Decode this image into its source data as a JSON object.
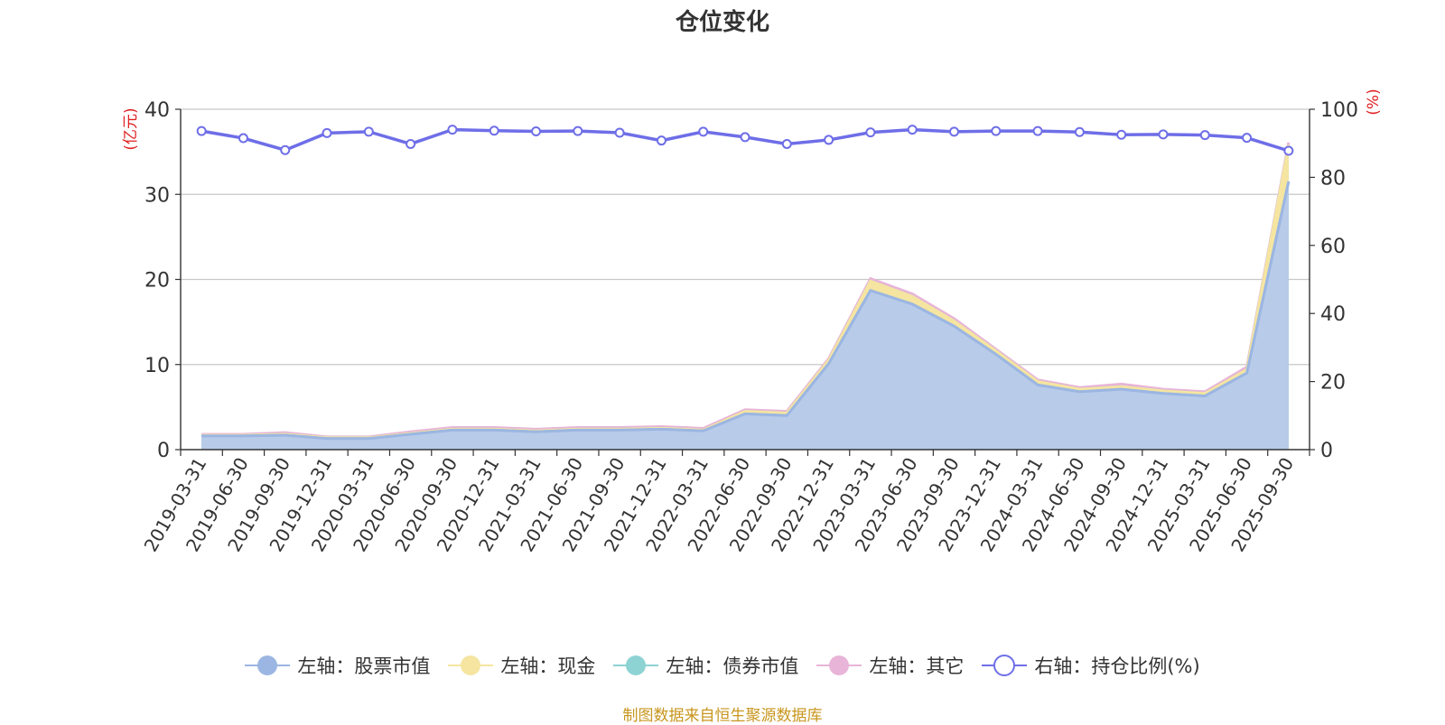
{
  "chart_data": {
    "type": "area",
    "title": "仓位变化",
    "y_left_label": "(亿元)",
    "y_right_label": "(%)",
    "y_left_lim": [
      0,
      40
    ],
    "y_right_lim": [
      0,
      100
    ],
    "y_left_ticks": [
      "0",
      "10",
      "20",
      "30",
      "40"
    ],
    "y_right_ticks": [
      "0",
      "20",
      "40",
      "60",
      "80",
      "100"
    ],
    "grid": true,
    "legend_position": "bottom",
    "x": [
      "2019-03-31",
      "2019-06-30",
      "2019-09-30",
      "2019-12-31",
      "2020-03-31",
      "2020-06-30",
      "2020-09-30",
      "2020-12-31",
      "2021-03-31",
      "2021-06-30",
      "2021-09-30",
      "2021-12-31",
      "2022-03-31",
      "2022-06-30",
      "2022-09-30",
      "2022-12-31",
      "2023-03-31",
      "2023-06-30",
      "2023-09-30",
      "2023-12-31",
      "2024-03-31",
      "2024-06-30",
      "2024-09-30",
      "2024-12-31",
      "2025-03-31",
      "2025-06-30",
      "2025-09-30"
    ],
    "series": [
      {
        "name": "左轴：股票市值",
        "axis": "left",
        "stacked": true,
        "color": "#9bb6e2",
        "values": [
          1.6,
          1.6,
          1.7,
          1.3,
          1.3,
          1.8,
          2.3,
          2.3,
          2.1,
          2.3,
          2.3,
          2.4,
          2.2,
          4.2,
          4.0,
          10.1,
          18.7,
          17.1,
          14.5,
          11.2,
          7.6,
          6.8,
          7.1,
          6.6,
          6.3,
          9.0,
          31.5
        ]
      },
      {
        "name": "左轴：现金",
        "axis": "left",
        "stacked": true,
        "color": "#f5e5a0",
        "values": [
          0.1,
          0.1,
          0.1,
          0.1,
          0.1,
          0.1,
          0.1,
          0.1,
          0.1,
          0.1,
          0.1,
          0.1,
          0.1,
          0.3,
          0.3,
          0.4,
          1.1,
          0.9,
          0.6,
          0.4,
          0.4,
          0.3,
          0.3,
          0.3,
          0.3,
          0.4,
          4.3
        ]
      },
      {
        "name": "左轴：债券市值",
        "axis": "left",
        "stacked": true,
        "color": "#8dd3d3",
        "values": [
          0,
          0,
          0,
          0,
          0,
          0,
          0,
          0,
          0,
          0,
          0,
          0,
          0,
          0,
          0,
          0,
          0,
          0,
          0,
          0,
          0,
          0,
          0,
          0,
          0,
          0,
          0
        ]
      },
      {
        "name": "左轴：其它",
        "axis": "left",
        "stacked": true,
        "color": "#e8b4d8",
        "values": [
          0.1,
          0.1,
          0.2,
          0.1,
          0.1,
          0.2,
          0.2,
          0.2,
          0.2,
          0.2,
          0.2,
          0.2,
          0.2,
          0.2,
          0.2,
          0.2,
          0.3,
          0.3,
          0.3,
          0.2,
          0.2,
          0.2,
          0.3,
          0.2,
          0.2,
          0.3,
          0.3
        ]
      },
      {
        "name": "右轴：持仓比例(%)",
        "axis": "right",
        "stacked": false,
        "color": "#6e6ee8",
        "values": [
          93.6,
          91.5,
          88.0,
          93.0,
          93.4,
          89.8,
          94.0,
          93.7,
          93.5,
          93.6,
          93.1,
          90.8,
          93.4,
          91.8,
          89.8,
          91.0,
          93.2,
          94.0,
          93.4,
          93.6,
          93.6,
          93.3,
          92.5,
          92.6,
          92.4,
          91.6,
          87.8
        ]
      }
    ],
    "source_note": "制图数据来自恒生聚源数据库"
  }
}
